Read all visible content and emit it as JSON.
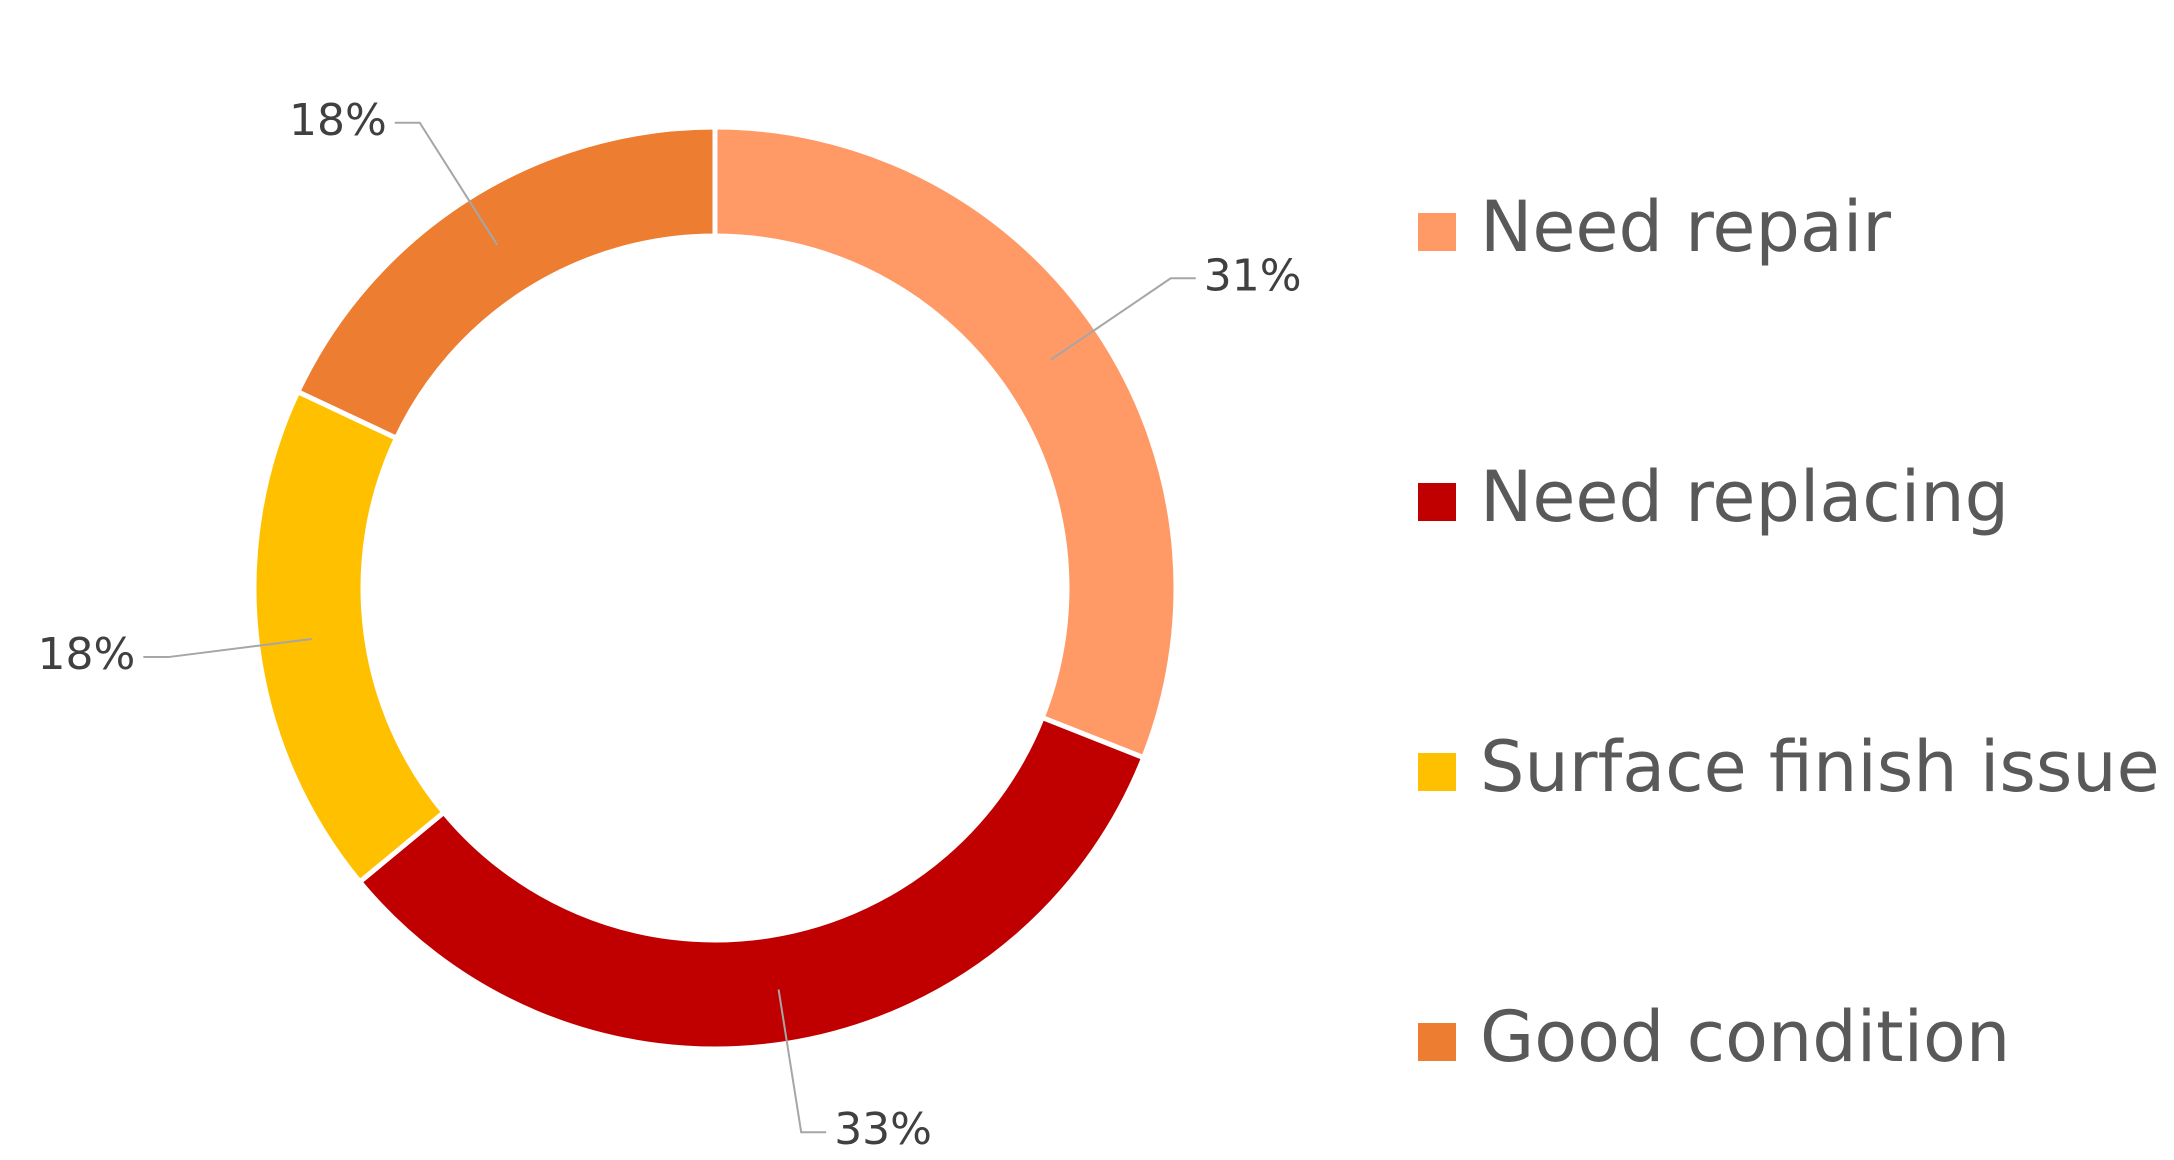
{
  "chart_data": {
    "type": "donut",
    "categories": [
      "Need repair",
      "Need replacing",
      "Surface finish issue",
      "Good condition"
    ],
    "values": [
      31,
      33,
      18,
      18
    ],
    "value_labels": [
      "31%",
      "33%",
      "18%",
      "18%"
    ],
    "colors": [
      "#FF9966",
      "#C00000",
      "#FFC000",
      "#ED7D31"
    ],
    "legend": "right"
  }
}
